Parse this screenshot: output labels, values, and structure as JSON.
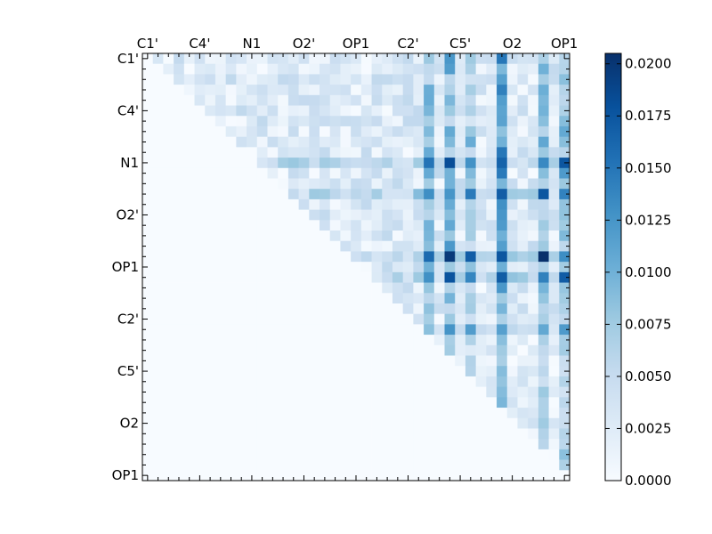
{
  "chart_data": {
    "type": "heatmap",
    "title": "",
    "xlabel": "",
    "ylabel": "",
    "size": 41,
    "x_tick_labels": [
      "C1'",
      "C4'",
      "N1",
      "O2'",
      "OP1",
      "C2'",
      "C5'",
      "O2",
      "OP1"
    ],
    "y_tick_labels": [
      "C1'",
      "C4'",
      "N1",
      "O2'",
      "OP1",
      "C2'",
      "C5'",
      "O2",
      "OP1"
    ],
    "x_tick_position": "top",
    "label_indices": [
      0,
      5,
      10,
      15,
      20,
      25,
      30,
      35,
      40
    ],
    "colormap": "Blues",
    "vmin": 0.0,
    "vmax": 0.0205,
    "colorbar_ticks": [
      "0.0000",
      "0.0025",
      "0.0050",
      "0.0075",
      "0.0100",
      "0.0125",
      "0.0150",
      "0.0175",
      "0.0200"
    ],
    "colorbar_tick_values": [
      0.0,
      0.0025,
      0.005,
      0.0075,
      0.01,
      0.0125,
      0.015,
      0.0175,
      0.02
    ],
    "matrix_structure": "upper-triangular (values above the diagonal, lower triangle ~0)",
    "observed_max": 0.0205,
    "grid": false,
    "legend": "colorbar-right"
  }
}
